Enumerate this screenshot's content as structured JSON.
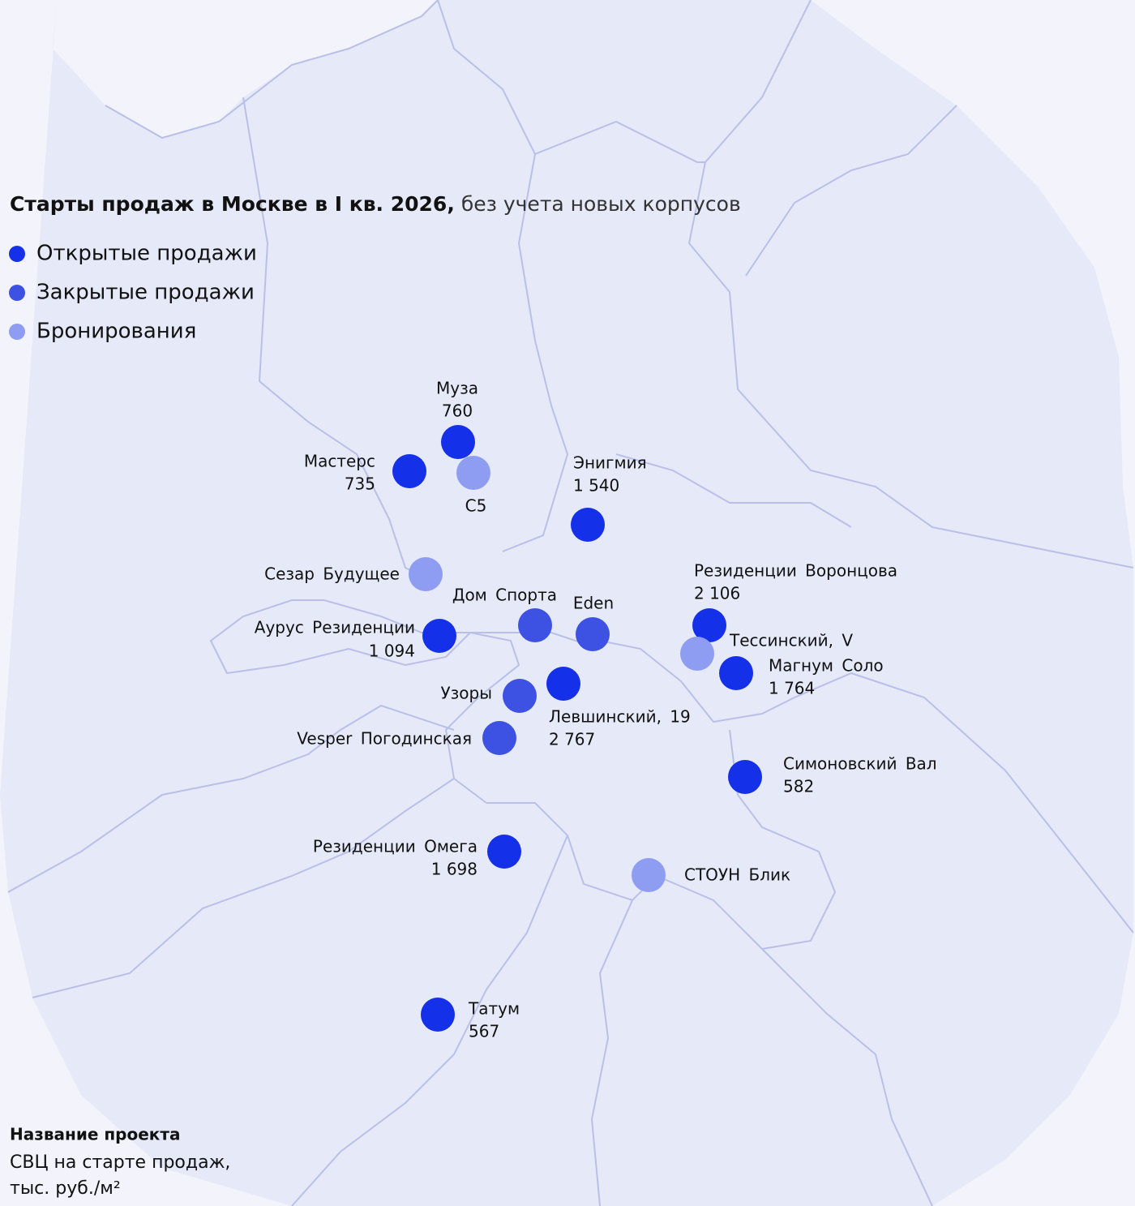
{
  "title": {
    "bold": "Старты продаж в Москве в I кв. 2026,",
    "regular": "без учета новых корпусов"
  },
  "legend": [
    {
      "label": "Открытые продажи",
      "color": "#1430e8"
    },
    {
      "label": "Закрытые продажи",
      "color": "#3d52e2"
    },
    {
      "label": "Бронирования",
      "color": "#8e9df2"
    }
  ],
  "points": [
    {
      "name": "Муза",
      "price": 760,
      "status": 0
    },
    {
      "name": "Мастерс",
      "price": 735,
      "status": 0
    },
    {
      "name": "С5",
      "status": 2
    },
    {
      "name": "Энигмия",
      "price": {
        "value": 1540,
        "label": "1 540"
      },
      "status": 0
    },
    {
      "name": "Сезар Будущее",
      "status": 2
    },
    {
      "name": "Дом Спорта",
      "status": 1
    },
    {
      "name": "Eden",
      "status": 1
    },
    {
      "name": "Аурус Резиденции",
      "price": {
        "value": 1094,
        "label": "1 094"
      },
      "status": 0
    },
    {
      "name": "Резиденции Воронцова",
      "price": {
        "value": 2106,
        "label": "2 106"
      },
      "status": 0
    },
    {
      "name": "Тессинский, V",
      "status": 2
    },
    {
      "name": "Магнум Соло",
      "price": {
        "value": 1764,
        "label": "1 764"
      },
      "status": 0
    },
    {
      "name": "Левшинский, 19",
      "price": {
        "value": 2767,
        "label": "2 767"
      },
      "status": 0
    },
    {
      "name": "Узоры",
      "status": 1
    },
    {
      "name": "Vesper Погодинская",
      "status": 1
    },
    {
      "name": "Симоновский Вал",
      "price": 582,
      "status": 0
    },
    {
      "name": "Резиденции Омега",
      "price": {
        "value": 1698,
        "label": "1 698"
      },
      "status": 0
    },
    {
      "name": "СТОУН Блик",
      "status": 2
    },
    {
      "name": "Татум",
      "price": 567,
      "status": 0
    }
  ],
  "footnote": {
    "name": "Название проекта",
    "line1": "СВЦ на старте продаж,",
    "line2": "тыс. руб./м²"
  }
}
